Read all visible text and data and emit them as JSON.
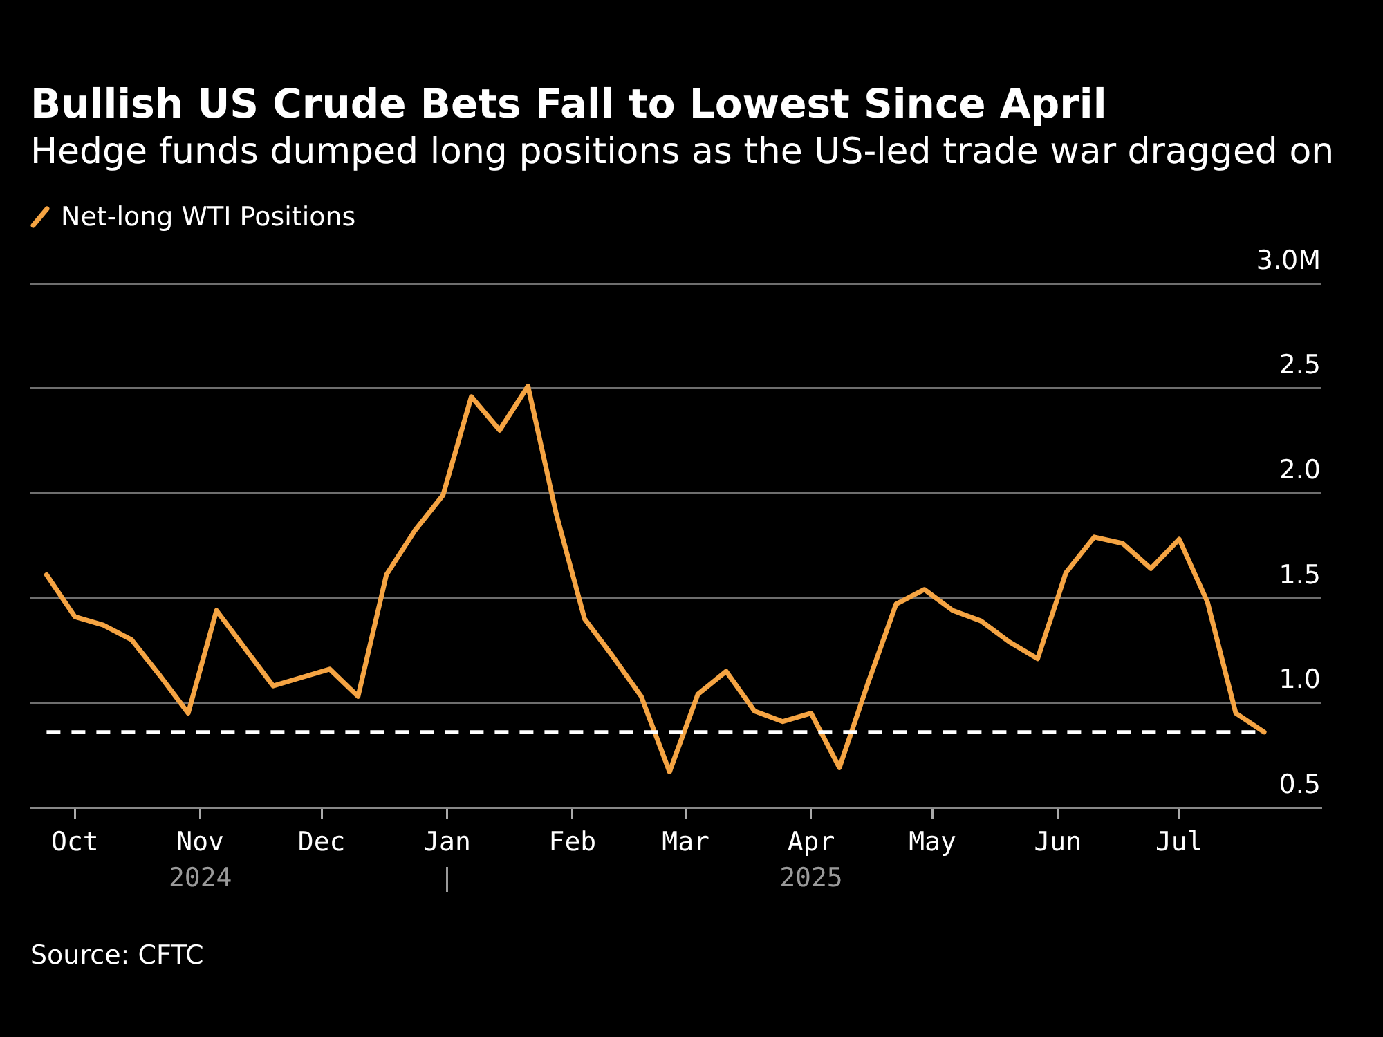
{
  "chart_data": {
    "type": "line",
    "title": "Bullish US Crude Bets Fall to Lowest Since April",
    "subtitle": "Hedge funds dumped long positions as the US-led trade war dragged on",
    "x": [
      "2024-09-24",
      "2024-10-01",
      "2024-10-08",
      "2024-10-15",
      "2024-10-22",
      "2024-10-29",
      "2024-11-05",
      "2024-11-12",
      "2024-11-19",
      "2024-11-26",
      "2024-12-03",
      "2024-12-10",
      "2024-12-17",
      "2024-12-24",
      "2024-12-31",
      "2025-01-07",
      "2025-01-14",
      "2025-01-21",
      "2025-01-28",
      "2025-02-04",
      "2025-02-11",
      "2025-02-18",
      "2025-02-25",
      "2025-03-04",
      "2025-03-11",
      "2025-03-18",
      "2025-03-25",
      "2025-04-01",
      "2025-04-08",
      "2025-04-15",
      "2025-04-22",
      "2025-04-29",
      "2025-05-06",
      "2025-05-13",
      "2025-05-20",
      "2025-05-27",
      "2025-06-03",
      "2025-06-10",
      "2025-06-17",
      "2025-06-24",
      "2025-07-01",
      "2025-07-08",
      "2025-07-15",
      "2025-07-22"
    ],
    "series": [
      {
        "name": "Net-long WTI Positions",
        "color": "#f5a443",
        "values": [
          1.61,
          1.41,
          1.37,
          1.3,
          1.13,
          0.95,
          1.44,
          1.26,
          1.08,
          1.12,
          1.16,
          1.03,
          1.61,
          1.82,
          1.99,
          2.46,
          2.3,
          2.51,
          1.9,
          1.4,
          1.22,
          1.03,
          0.67,
          1.04,
          1.15,
          0.96,
          0.91,
          0.95,
          0.69,
          1.09,
          1.47,
          1.54,
          1.44,
          1.39,
          1.29,
          1.21,
          1.62,
          1.79,
          1.76,
          1.64,
          1.78,
          1.48,
          0.95,
          0.86
        ]
      }
    ],
    "xlim": [
      "2024-09-20",
      "2025-08-05"
    ],
    "xticks": [
      {
        "value": "2024-10-01",
        "label": "Oct"
      },
      {
        "value": "2024-11-01",
        "label": "Nov\n2024"
      },
      {
        "value": "2024-12-01",
        "label": "Dec"
      },
      {
        "value": "2025-01-01",
        "label": "Jan"
      },
      {
        "value": "2025-02-01",
        "label": "Feb"
      },
      {
        "value": "2025-03-01",
        "label": "Mar"
      },
      {
        "value": "2025-04-01",
        "label": "Apr\n2025"
      },
      {
        "value": "2025-05-01",
        "label": "May"
      },
      {
        "value": "2025-06-01",
        "label": "Jun"
      },
      {
        "value": "2025-07-01",
        "label": "Jul"
      }
    ],
    "ylim": [
      0.5,
      3.0
    ],
    "yticks": [
      {
        "value": 0.5,
        "label": "0.5"
      },
      {
        "value": 1,
        "label": "1.0"
      },
      {
        "value": 1.5,
        "label": "1.5"
      },
      {
        "value": 2,
        "label": "2.0"
      },
      {
        "value": 2.5,
        "label": "2.5"
      },
      {
        "value": 3,
        "label": "3.0M"
      }
    ],
    "grid": "y",
    "legend": "top left",
    "line_style": "solid",
    "ref_lines": [
      {
        "axis": "y",
        "value": 0.86,
        "color": "#ffffff",
        "line_style": "dashed"
      }
    ],
    "annotations": [
      "Source: CFTC"
    ]
  }
}
